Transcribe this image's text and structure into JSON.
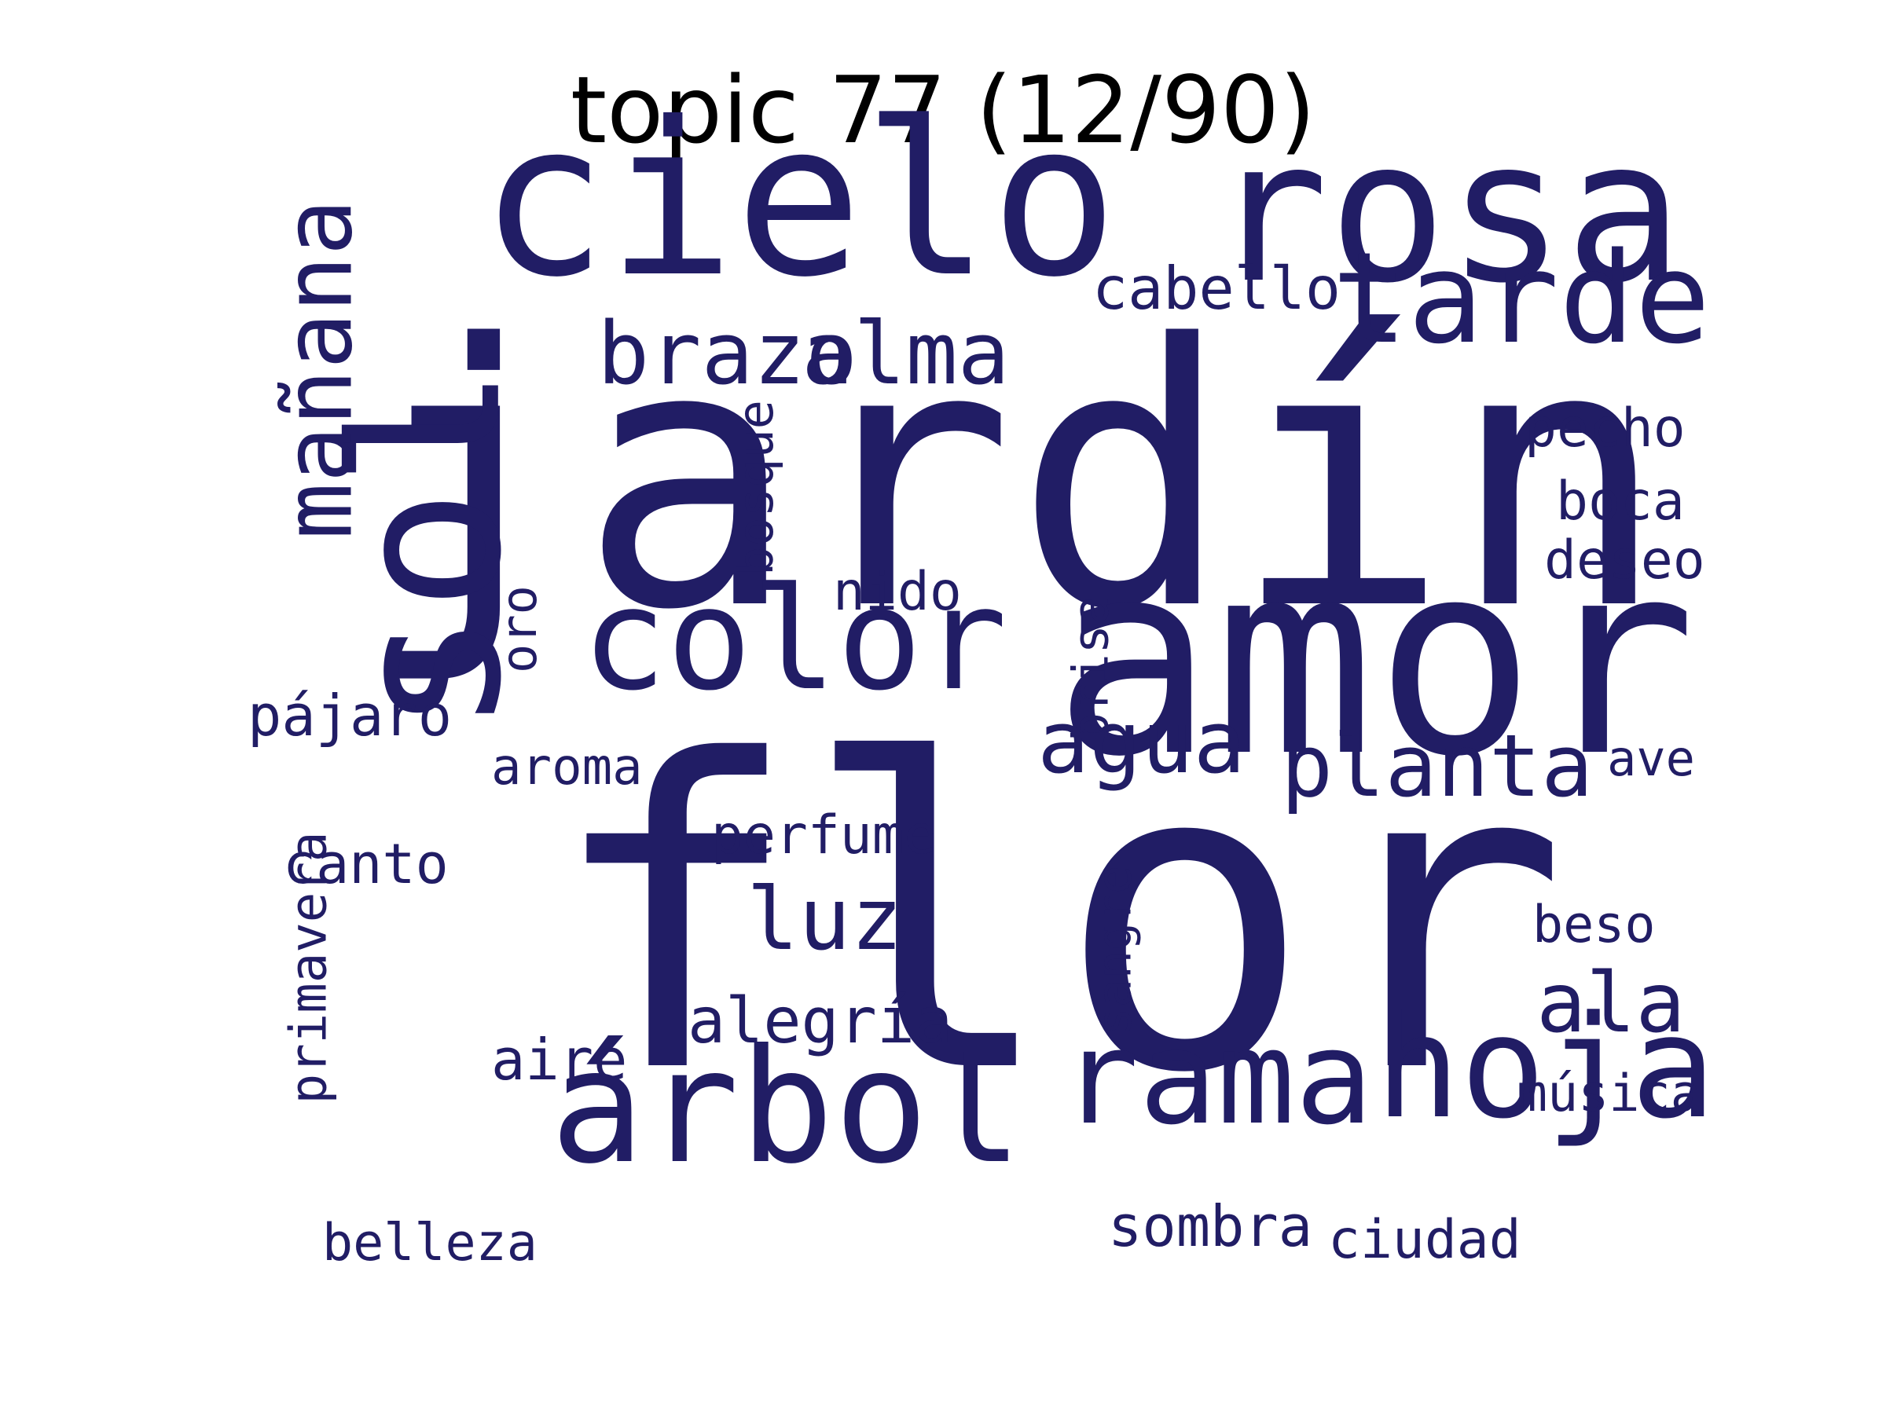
{
  "title": "topic 77 (12/90)",
  "colors": {
    "word": "#211d65",
    "background": "#ffffff",
    "title": "#000000"
  },
  "words": [
    {
      "text": "flor",
      "weight": 1.0
    },
    {
      "text": "jardín",
      "weight": 0.82
    },
    {
      "text": "sol",
      "weight": 0.62
    },
    {
      "text": "amor",
      "weight": 0.56
    },
    {
      "text": "cielo",
      "weight": 0.46
    },
    {
      "text": "rosa",
      "weight": 0.43
    },
    {
      "text": "mañana",
      "weight": 0.33
    },
    {
      "text": "árbol",
      "weight": 0.36
    },
    {
      "text": "hoja",
      "weight": 0.33
    },
    {
      "text": "rama",
      "weight": 0.31
    },
    {
      "text": "color",
      "weight": 0.3
    },
    {
      "text": "tarde",
      "weight": 0.3
    },
    {
      "text": "brazo",
      "weight": 0.22
    },
    {
      "text": "alma",
      "weight": 0.22
    },
    {
      "text": "planta",
      "weight": 0.22
    },
    {
      "text": "agua",
      "weight": 0.21
    },
    {
      "text": "luz",
      "weight": 0.21
    },
    {
      "text": "ala",
      "weight": 0.21
    },
    {
      "text": "alegría",
      "weight": 0.16
    },
    {
      "text": "cabello",
      "weight": 0.15
    },
    {
      "text": "pájaro",
      "weight": 0.15
    },
    {
      "text": "aire",
      "weight": 0.15
    },
    {
      "text": "sombra",
      "weight": 0.14
    },
    {
      "text": "ciudad",
      "weight": 0.14
    },
    {
      "text": "perfume",
      "weight": 0.14
    },
    {
      "text": "canto",
      "weight": 0.14
    },
    {
      "text": "nido",
      "weight": 0.14
    },
    {
      "text": "pecho",
      "weight": 0.13
    },
    {
      "text": "boca",
      "weight": 0.13
    },
    {
      "text": "deseo",
      "weight": 0.13
    },
    {
      "text": "beso",
      "weight": 0.13
    },
    {
      "text": "música",
      "weight": 0.13
    },
    {
      "text": "primavera",
      "weight": 0.12
    },
    {
      "text": "belleza",
      "weight": 0.12
    },
    {
      "text": "aroma",
      "weight": 0.12
    },
    {
      "text": "ave",
      "weight": 0.12
    },
    {
      "text": "bosque",
      "weight": 0.11
    },
    {
      "text": "oro",
      "weight": 0.11
    },
    {
      "text": "brisa",
      "weight": 0.11
    },
    {
      "text": "sangre",
      "weight": 0.11
    }
  ]
}
